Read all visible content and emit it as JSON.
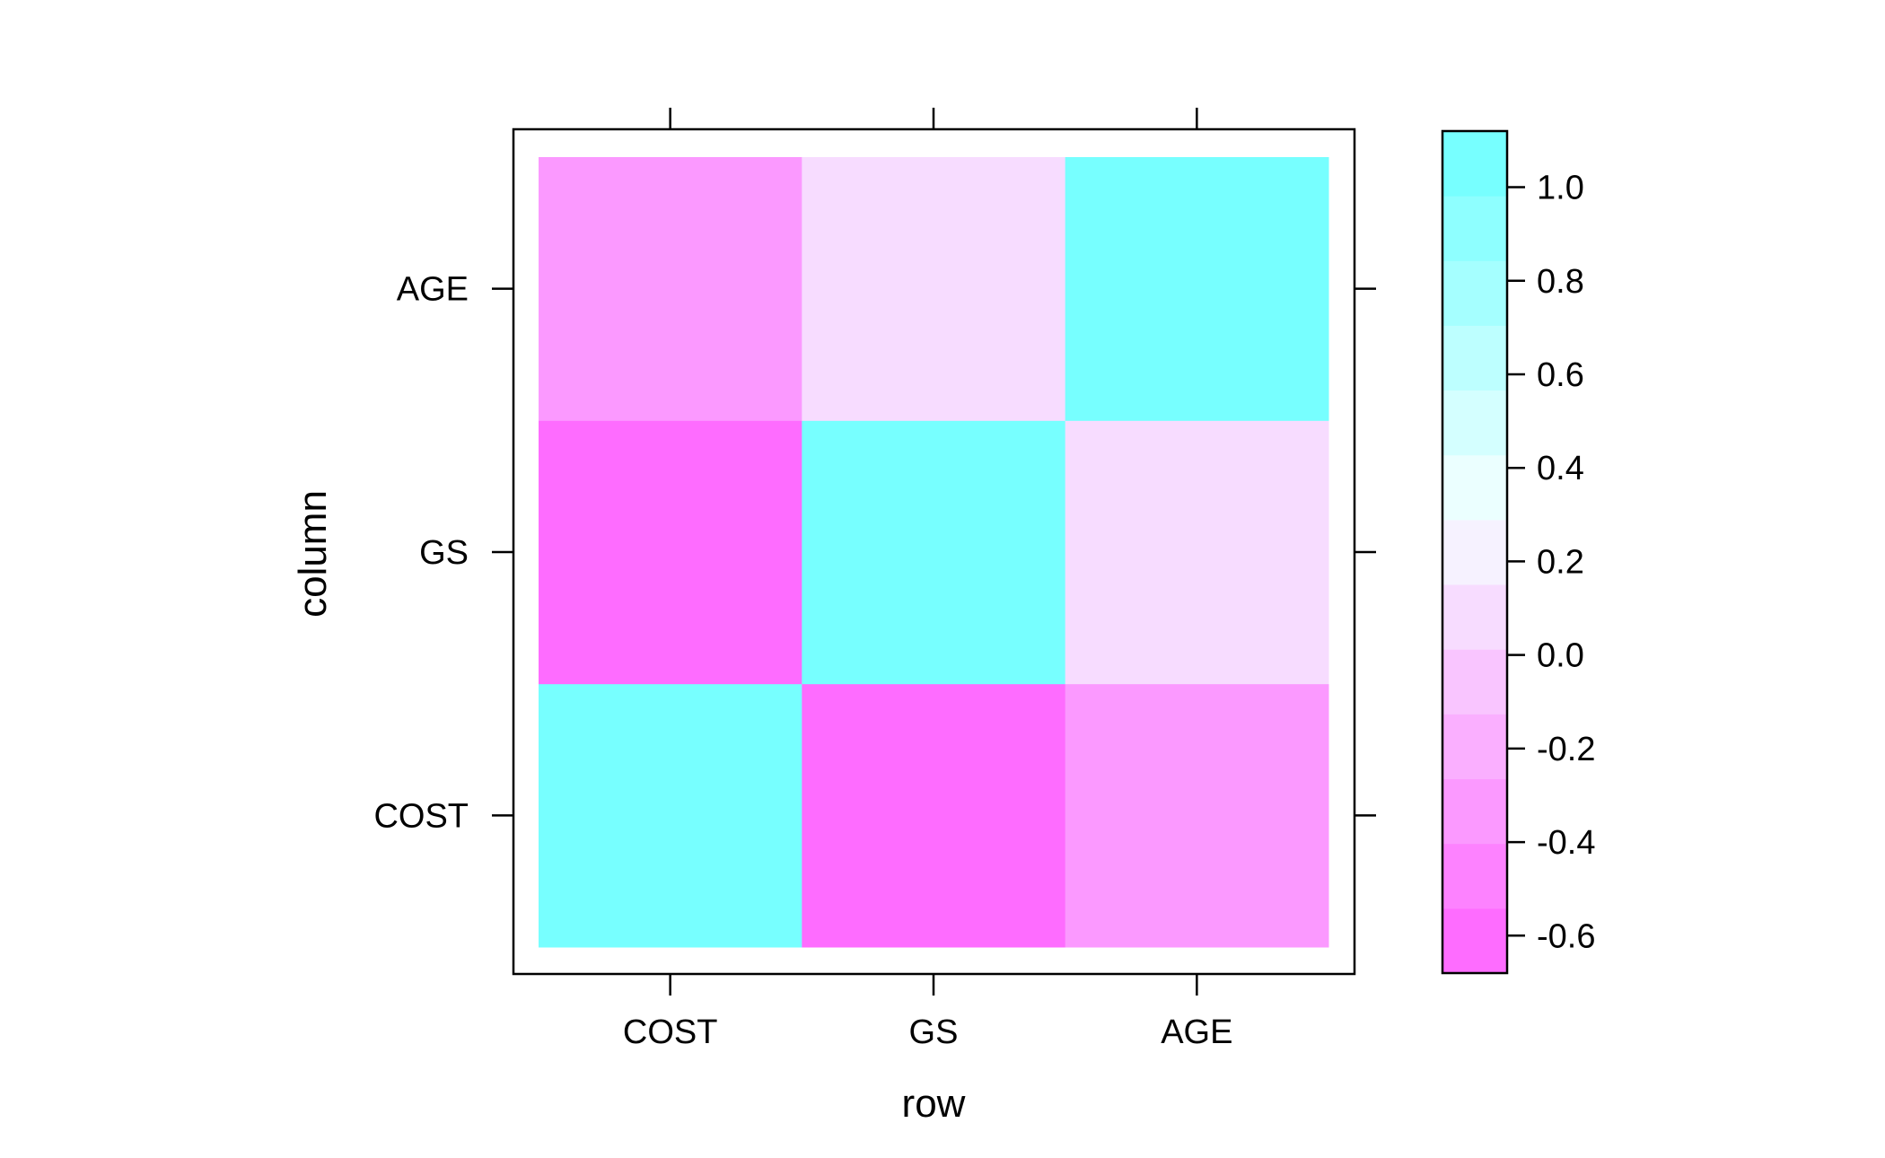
{
  "chart_data": {
    "type": "heatmap",
    "xlabel": "row",
    "ylabel": "column",
    "x_categories": [
      "COST",
      "GS",
      "AGE"
    ],
    "y_categories": [
      "COST",
      "GS",
      "AGE"
    ],
    "values": [
      [
        1.0,
        -0.56,
        -0.38
      ],
      [
        -0.56,
        1.0,
        0.08
      ],
      [
        -0.38,
        0.08,
        1.0
      ]
    ],
    "colorbar": {
      "min": -0.68,
      "max": 1.12,
      "ticks": [
        -0.6,
        -0.4,
        -0.2,
        0.0,
        0.2,
        0.4,
        0.6,
        0.8,
        1.0
      ],
      "tick_labels": [
        "-0.6",
        "-0.4",
        "-0.2",
        "0.0",
        "0.2",
        "0.4",
        "0.6",
        "0.8",
        "1.0"
      ]
    },
    "colors": {
      "negative": "#ff61ff",
      "neutral": "#f5ffff",
      "positive": "#6bffff"
    },
    "grid": false,
    "legend_position": "right"
  }
}
